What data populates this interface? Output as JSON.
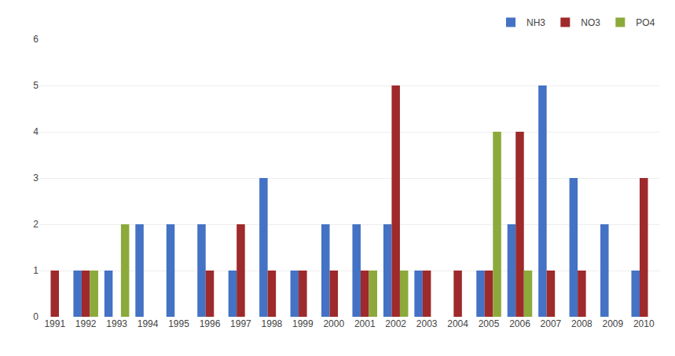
{
  "chart_data": {
    "type": "bar",
    "categories": [
      "1991",
      "1992",
      "1993",
      "1994",
      "1995",
      "1996",
      "1997",
      "1998",
      "1999",
      "2000",
      "2001",
      "2002",
      "2003",
      "2004",
      "2005",
      "2006",
      "2007",
      "2008",
      "2009",
      "2010"
    ],
    "series": [
      {
        "name": "NH3",
        "color": "#4472C4",
        "values": [
          0,
          1,
          1,
          2,
          2,
          2,
          1,
          3,
          1,
          2,
          2,
          2,
          1,
          0,
          1,
          2,
          5,
          3,
          2,
          1
        ]
      },
      {
        "name": "NO3",
        "color": "#9E2A2B",
        "values": [
          1,
          1,
          0,
          0,
          0,
          1,
          2,
          1,
          1,
          1,
          1,
          5,
          1,
          1,
          1,
          4,
          1,
          1,
          0,
          3
        ]
      },
      {
        "name": "PO4",
        "color": "#8CAA3B",
        "values": [
          0,
          1,
          2,
          0,
          0,
          0,
          0,
          0,
          0,
          0,
          1,
          1,
          0,
          0,
          4,
          1,
          0,
          0,
          0,
          0
        ]
      }
    ],
    "ylim": [
      0,
      6
    ],
    "yticks": [
      0,
      1,
      2,
      3,
      4,
      5,
      6
    ],
    "grid": true,
    "legend": "upper right"
  }
}
